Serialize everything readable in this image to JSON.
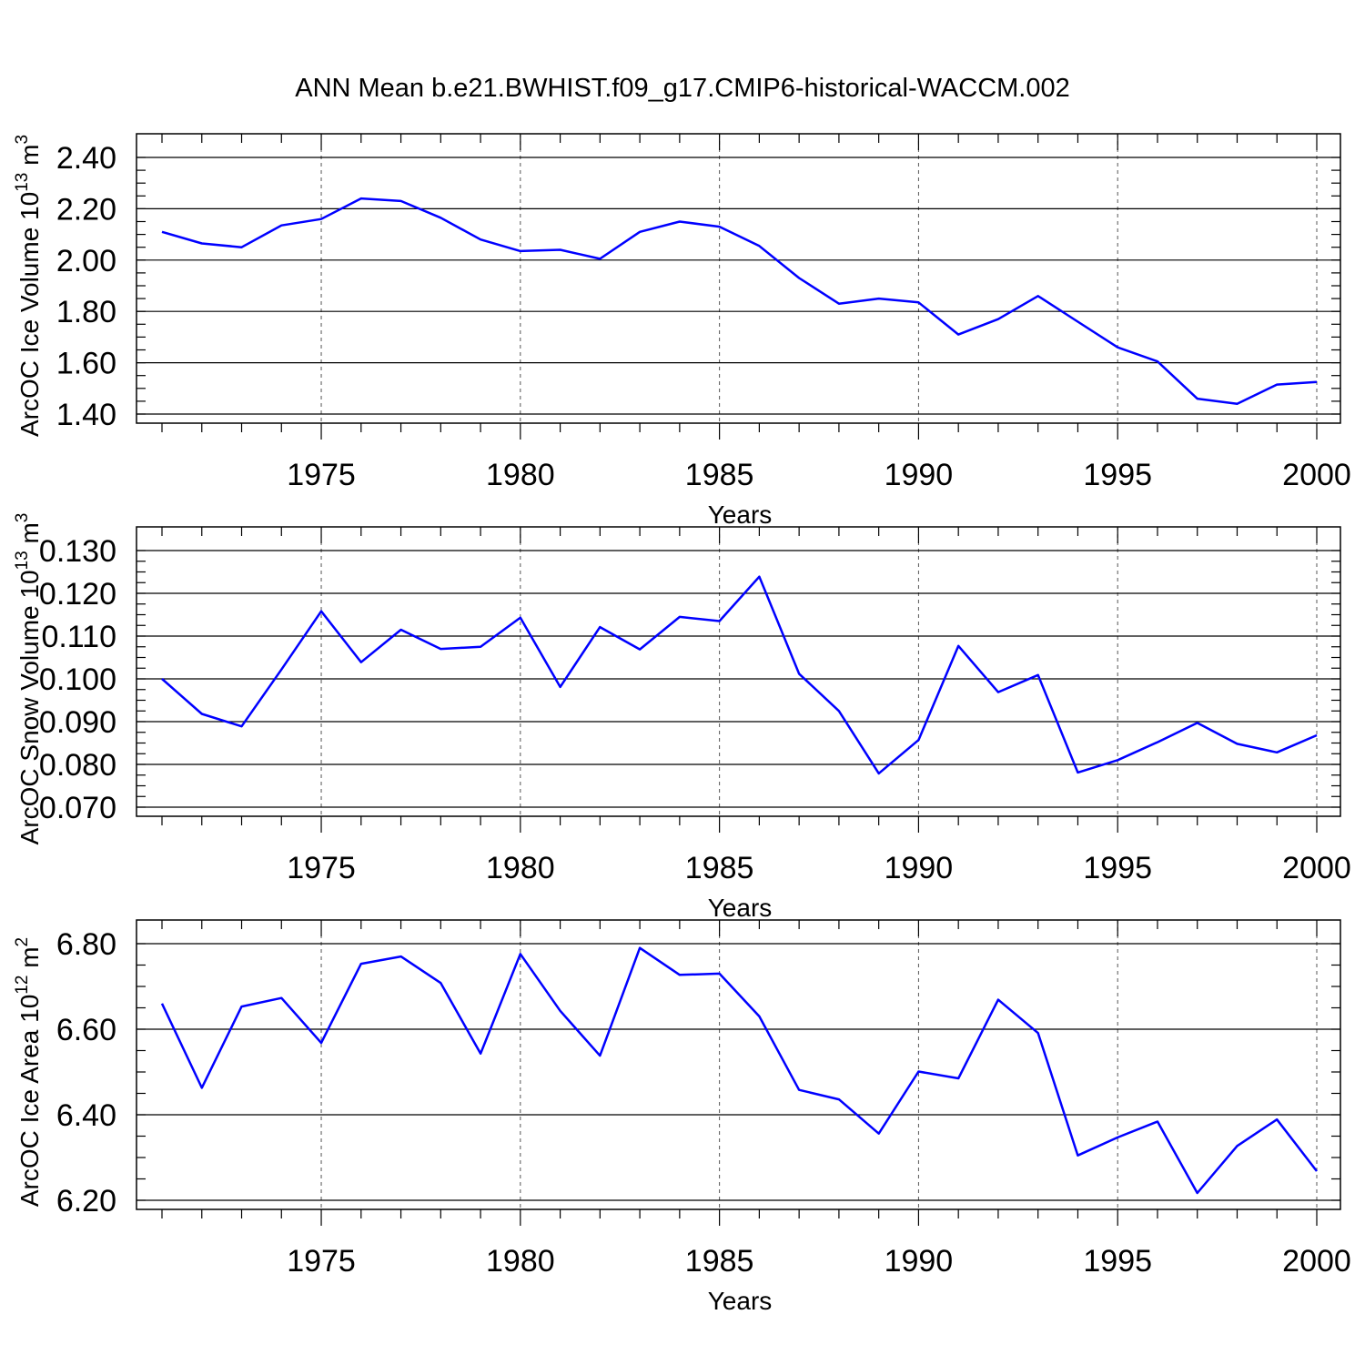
{
  "figure": {
    "title": "ANN Mean b.e21.BWHIST.f09_g17.CMIP6-historical-WACCM.002",
    "line_color": "#0000ff"
  },
  "chart_data": [
    {
      "type": "line",
      "xlabel": "Years",
      "ylabel": {
        "text": "ArcOC Ice Volume 10",
        "sup": "13",
        "unit": " m",
        "unit_sup": "3"
      },
      "xlim": [
        1971,
        2000
      ],
      "ylim": [
        1.4,
        2.4
      ],
      "yticks": [
        1.4,
        1.6,
        1.8,
        2.0,
        2.2,
        2.4
      ],
      "ytick_labels": [
        "1.40",
        "1.60",
        "1.80",
        "2.00",
        "2.20",
        "2.40"
      ],
      "ytick_minor_step": 0.05,
      "xticks": [
        1975,
        1980,
        1985,
        1990,
        1995,
        2000
      ],
      "xtick_labels": [
        "1975",
        "1980",
        "1985",
        "1990",
        "1995",
        "2000"
      ],
      "xtick_minor_step": 1,
      "grid": "vertical dashed at major x ticks",
      "x": [
        1971,
        1972,
        1973,
        1974,
        1975,
        1976,
        1977,
        1978,
        1979,
        1980,
        1981,
        1982,
        1983,
        1984,
        1985,
        1986,
        1987,
        1988,
        1989,
        1990,
        1991,
        1992,
        1993,
        1994,
        1995,
        1996,
        1997,
        1998,
        1999,
        2000
      ],
      "values": [
        2.11,
        2.065,
        2.05,
        2.135,
        2.16,
        2.24,
        2.23,
        2.165,
        2.08,
        2.035,
        2.04,
        2.005,
        2.11,
        2.15,
        2.13,
        2.055,
        1.93,
        1.83,
        1.85,
        1.835,
        1.71,
        1.77,
        1.86,
        1.76,
        1.66,
        1.605,
        1.46,
        1.44,
        1.515,
        1.525
      ]
    },
    {
      "type": "line",
      "xlabel": "Years",
      "ylabel": {
        "text": "ArcOC Snow Volume 10",
        "sup": "13",
        "unit": " m",
        "unit_sup": "3"
      },
      "xlim": [
        1971,
        2000
      ],
      "ylim": [
        0.07,
        0.13
      ],
      "yticks": [
        0.07,
        0.08,
        0.09,
        0.1,
        0.11,
        0.12,
        0.13
      ],
      "ytick_labels": [
        "0.070",
        "0.080",
        "0.090",
        "0.100",
        "0.110",
        "0.120",
        "0.130"
      ],
      "ytick_minor_step": 0.0025,
      "xticks": [
        1975,
        1980,
        1985,
        1990,
        1995,
        2000
      ],
      "xtick_labels": [
        "1975",
        "1980",
        "1985",
        "1990",
        "1995",
        "2000"
      ],
      "xtick_minor_step": 1,
      "grid": "vertical dashed at major x ticks",
      "x": [
        1971,
        1972,
        1973,
        1974,
        1975,
        1976,
        1977,
        1978,
        1979,
        1980,
        1981,
        1982,
        1983,
        1984,
        1985,
        1986,
        1987,
        1988,
        1989,
        1990,
        1991,
        1992,
        1993,
        1994,
        1995,
        1996,
        1997,
        1998,
        1999,
        2000
      ],
      "values": [
        0.1,
        0.0918,
        0.0889,
        0.1022,
        0.1158,
        0.1039,
        0.1115,
        0.107,
        0.1075,
        0.1143,
        0.0981,
        0.1121,
        0.1069,
        0.1145,
        0.1135,
        0.1239,
        0.1012,
        0.0925,
        0.0779,
        0.0857,
        0.1077,
        0.0969,
        0.1009,
        0.0781,
        0.081,
        0.0852,
        0.0897,
        0.0848,
        0.0828,
        0.0868
      ]
    },
    {
      "type": "line",
      "xlabel": "Years",
      "ylabel": {
        "text": "ArcOC Ice Area 10",
        "sup": "12",
        "unit": " m",
        "unit_sup": "2"
      },
      "xlim": [
        1971,
        2000
      ],
      "ylim": [
        6.2,
        6.8
      ],
      "yticks": [
        6.2,
        6.4,
        6.6,
        6.8
      ],
      "ytick_labels": [
        "6.20",
        "6.40",
        "6.60",
        "6.80"
      ],
      "ytick_minor_step": 0.05,
      "xticks": [
        1975,
        1980,
        1985,
        1990,
        1995,
        2000
      ],
      "xtick_labels": [
        "1975",
        "1980",
        "1985",
        "1990",
        "1995",
        "2000"
      ],
      "xtick_minor_step": 1,
      "grid": "vertical dashed at major x ticks",
      "x": [
        1971,
        1972,
        1973,
        1974,
        1975,
        1976,
        1977,
        1978,
        1979,
        1980,
        1981,
        1982,
        1983,
        1984,
        1985,
        1986,
        1987,
        1988,
        1989,
        1990,
        1991,
        1992,
        1993,
        1994,
        1995,
        1996,
        1997,
        1998,
        1999,
        2000
      ],
      "values": [
        6.66,
        6.463,
        6.653,
        6.673,
        6.568,
        6.753,
        6.77,
        6.708,
        6.543,
        6.776,
        6.643,
        6.538,
        6.79,
        6.727,
        6.73,
        6.63,
        6.458,
        6.436,
        6.356,
        6.501,
        6.485,
        6.669,
        6.591,
        6.305,
        6.347,
        6.384,
        6.217,
        6.327,
        6.389,
        6.268
      ]
    }
  ]
}
